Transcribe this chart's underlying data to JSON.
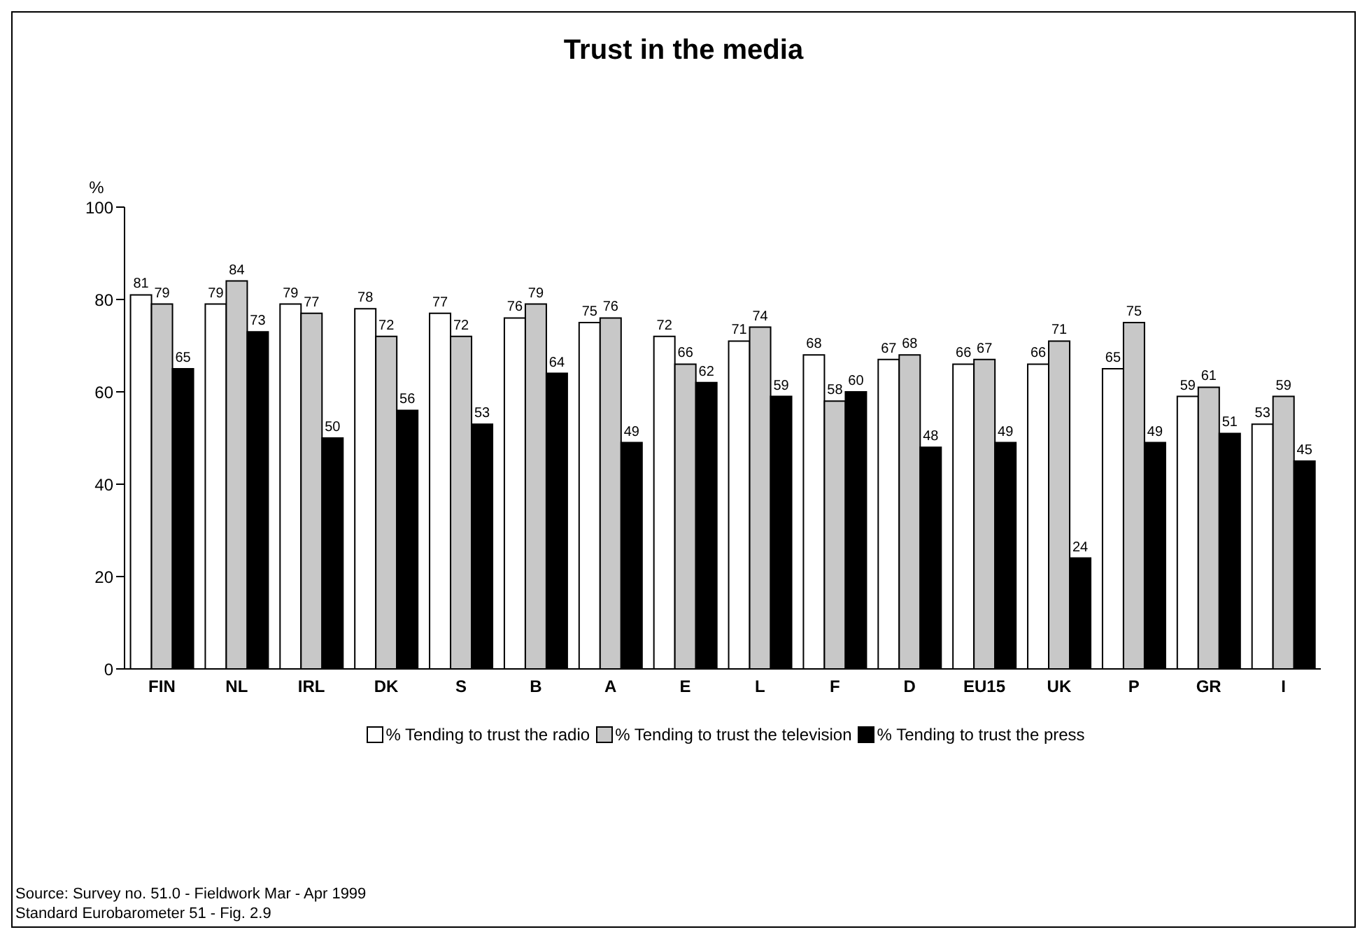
{
  "chart_data": {
    "type": "bar",
    "title": "Trust in the media",
    "ylabel": "%",
    "categories": [
      "FIN",
      "NL",
      "IRL",
      "DK",
      "S",
      "B",
      "A",
      "E",
      "L",
      "F",
      "D",
      "EU15",
      "UK",
      "P",
      "GR",
      "I"
    ],
    "series": [
      {
        "name": "% Tending to trust the radio",
        "color": "#ffffff",
        "values": [
          81,
          79,
          79,
          78,
          77,
          76,
          75,
          72,
          71,
          68,
          67,
          66,
          66,
          65,
          59,
          53
        ]
      },
      {
        "name": "% Tending to trust the television",
        "color": "#c8c8c8",
        "values": [
          79,
          84,
          77,
          72,
          72,
          79,
          76,
          66,
          74,
          58,
          68,
          67,
          71,
          75,
          61,
          59
        ]
      },
      {
        "name": "% Tending to trust the press",
        "color": "#000000",
        "values": [
          65,
          73,
          50,
          56,
          53,
          64,
          49,
          62,
          59,
          60,
          48,
          49,
          24,
          49,
          51,
          45
        ]
      }
    ],
    "ylim": [
      0,
      100
    ],
    "yticks": [
      0,
      20,
      40,
      60,
      80,
      100
    ],
    "grid": false,
    "legend": "bottom",
    "data_labels": true,
    "annotations": [
      "Source:  Survey no. 51.0 - Fieldwork Mar - Apr 1999",
      "Standard Eurobarometer 51 - Fig. 2.9"
    ]
  }
}
